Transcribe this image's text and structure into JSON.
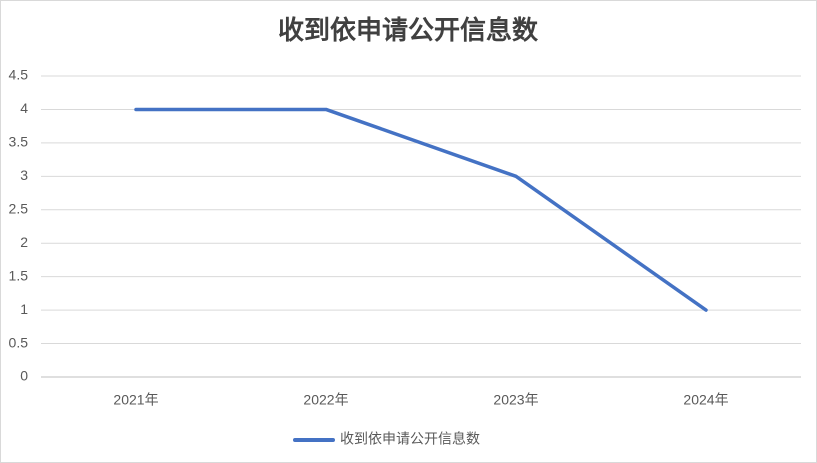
{
  "chart_data": {
    "type": "line",
    "title": "收到依申请公开信息数",
    "categories": [
      "2021年",
      "2022年",
      "2023年",
      "2024年"
    ],
    "series": [
      {
        "name": "收到依申请公开信息数",
        "color": "#4472c4",
        "values": [
          4,
          4,
          3,
          1
        ]
      }
    ],
    "ylim": [
      0,
      4.5
    ],
    "yticks": [
      0,
      0.5,
      1,
      1.5,
      2,
      2.5,
      3,
      3.5,
      4,
      4.5
    ],
    "grid": true,
    "legend": "bottom"
  }
}
